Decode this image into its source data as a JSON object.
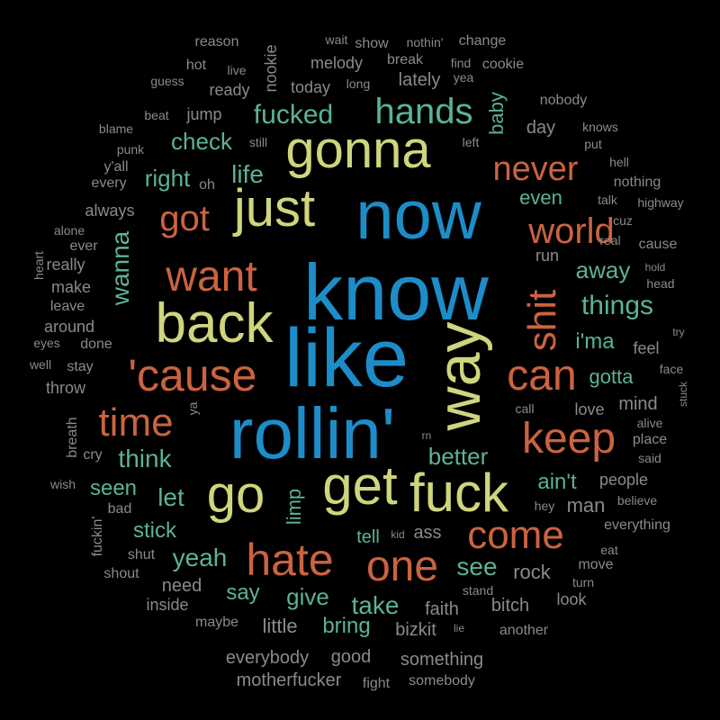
{
  "palette": {
    "blue": "#1d8dc9",
    "yellow": "#cfd57d",
    "orange": "#cb6340",
    "green": "#5bb395",
    "gray": "#8a8a8a"
  },
  "words": [
    {
      "text": "know",
      "color": "blue"
    },
    {
      "text": "like",
      "color": "blue"
    },
    {
      "text": "rollin'",
      "color": "blue"
    },
    {
      "text": "now",
      "color": "blue"
    },
    {
      "text": "gonna",
      "color": "yellow"
    },
    {
      "text": "just",
      "color": "yellow"
    },
    {
      "text": "back",
      "color": "yellow"
    },
    {
      "text": "way",
      "color": "yellow"
    },
    {
      "text": "get",
      "color": "yellow"
    },
    {
      "text": "fuck",
      "color": "yellow"
    },
    {
      "text": "go",
      "color": "yellow"
    },
    {
      "text": "want",
      "color": "orange"
    },
    {
      "text": "'cause",
      "color": "orange"
    },
    {
      "text": "got",
      "color": "orange"
    },
    {
      "text": "can",
      "color": "orange"
    },
    {
      "text": "shit",
      "color": "orange"
    },
    {
      "text": "keep",
      "color": "orange"
    },
    {
      "text": "time",
      "color": "orange"
    },
    {
      "text": "hate",
      "color": "orange"
    },
    {
      "text": "one",
      "color": "orange"
    },
    {
      "text": "come",
      "color": "orange"
    },
    {
      "text": "never",
      "color": "orange"
    },
    {
      "text": "world",
      "color": "orange"
    },
    {
      "text": "hands",
      "color": "green"
    },
    {
      "text": "fucked",
      "color": "green"
    },
    {
      "text": "check",
      "color": "green"
    },
    {
      "text": "life",
      "color": "green"
    },
    {
      "text": "right",
      "color": "green"
    },
    {
      "text": "wanna",
      "color": "green"
    },
    {
      "text": "things",
      "color": "green"
    },
    {
      "text": "away",
      "color": "green"
    },
    {
      "text": "i'ma",
      "color": "green"
    },
    {
      "text": "gotta",
      "color": "green"
    },
    {
      "text": "think",
      "color": "green"
    },
    {
      "text": "let",
      "color": "green"
    },
    {
      "text": "seen",
      "color": "green"
    },
    {
      "text": "better",
      "color": "green"
    },
    {
      "text": "ain't",
      "color": "green"
    },
    {
      "text": "yeah",
      "color": "green"
    },
    {
      "text": "stick",
      "color": "green"
    },
    {
      "text": "see",
      "color": "green"
    },
    {
      "text": "give",
      "color": "green"
    },
    {
      "text": "say",
      "color": "green"
    },
    {
      "text": "take",
      "color": "green"
    },
    {
      "text": "bring",
      "color": "green"
    },
    {
      "text": "tell",
      "color": "green"
    },
    {
      "text": "limp",
      "color": "green"
    },
    {
      "text": "baby",
      "color": "green"
    },
    {
      "text": "even",
      "color": "green"
    },
    {
      "text": "man",
      "color": "gray"
    },
    {
      "text": "ass",
      "color": "gray"
    },
    {
      "text": "rock",
      "color": "gray"
    },
    {
      "text": "bitch",
      "color": "gray"
    },
    {
      "text": "faith",
      "color": "gray"
    },
    {
      "text": "little",
      "color": "gray"
    },
    {
      "text": "bizkit",
      "color": "gray"
    },
    {
      "text": "good",
      "color": "gray"
    },
    {
      "text": "everybody",
      "color": "gray"
    },
    {
      "text": "something",
      "color": "gray"
    },
    {
      "text": "motherfucker",
      "color": "gray"
    },
    {
      "text": "somebody",
      "color": "gray"
    },
    {
      "text": "fight",
      "color": "gray"
    },
    {
      "text": "need",
      "color": "gray"
    },
    {
      "text": "inside",
      "color": "gray"
    },
    {
      "text": "maybe",
      "color": "gray"
    },
    {
      "text": "shout",
      "color": "gray"
    },
    {
      "text": "shut",
      "color": "gray"
    },
    {
      "text": "bad",
      "color": "gray"
    },
    {
      "text": "fuckin'",
      "color": "gray"
    },
    {
      "text": "wish",
      "color": "gray"
    },
    {
      "text": "cry",
      "color": "gray"
    },
    {
      "text": "breath",
      "color": "gray"
    },
    {
      "text": "throw",
      "color": "gray"
    },
    {
      "text": "well",
      "color": "gray"
    },
    {
      "text": "stay",
      "color": "gray"
    },
    {
      "text": "eyes",
      "color": "gray"
    },
    {
      "text": "done",
      "color": "gray"
    },
    {
      "text": "around",
      "color": "gray"
    },
    {
      "text": "leave",
      "color": "gray"
    },
    {
      "text": "make",
      "color": "gray"
    },
    {
      "text": "really",
      "color": "gray"
    },
    {
      "text": "heart",
      "color": "gray"
    },
    {
      "text": "ever",
      "color": "gray"
    },
    {
      "text": "alone",
      "color": "gray"
    },
    {
      "text": "always",
      "color": "gray"
    },
    {
      "text": "every",
      "color": "gray"
    },
    {
      "text": "oh",
      "color": "gray"
    },
    {
      "text": "y'all",
      "color": "gray"
    },
    {
      "text": "punk",
      "color": "gray"
    },
    {
      "text": "blame",
      "color": "gray"
    },
    {
      "text": "beat",
      "color": "gray"
    },
    {
      "text": "still",
      "color": "gray"
    },
    {
      "text": "jump",
      "color": "gray"
    },
    {
      "text": "ready",
      "color": "gray"
    },
    {
      "text": "guess",
      "color": "gray"
    },
    {
      "text": "hot",
      "color": "gray"
    },
    {
      "text": "live",
      "color": "gray"
    },
    {
      "text": "reason",
      "color": "gray"
    },
    {
      "text": "nookie",
      "color": "gray"
    },
    {
      "text": "wait",
      "color": "gray"
    },
    {
      "text": "show",
      "color": "gray"
    },
    {
      "text": "melody",
      "color": "gray"
    },
    {
      "text": "today",
      "color": "gray"
    },
    {
      "text": "long",
      "color": "gray"
    },
    {
      "text": "break",
      "color": "gray"
    },
    {
      "text": "nothin'",
      "color": "gray"
    },
    {
      "text": "change",
      "color": "gray"
    },
    {
      "text": "find",
      "color": "gray"
    },
    {
      "text": "cookie",
      "color": "gray"
    },
    {
      "text": "yea",
      "color": "gray"
    },
    {
      "text": "lately",
      "color": "gray"
    },
    {
      "text": "nobody",
      "color": "gray"
    },
    {
      "text": "day",
      "color": "gray"
    },
    {
      "text": "knows",
      "color": "gray"
    },
    {
      "text": "left",
      "color": "gray"
    },
    {
      "text": "put",
      "color": "gray"
    },
    {
      "text": "hell",
      "color": "gray"
    },
    {
      "text": "nothing",
      "color": "gray"
    },
    {
      "text": "talk",
      "color": "gray"
    },
    {
      "text": "highway",
      "color": "gray"
    },
    {
      "text": "cuz",
      "color": "gray"
    },
    {
      "text": "real",
      "color": "gray"
    },
    {
      "text": "cause",
      "color": "gray"
    },
    {
      "text": "hold",
      "color": "gray"
    },
    {
      "text": "head",
      "color": "gray"
    },
    {
      "text": "run",
      "color": "gray"
    },
    {
      "text": "feel",
      "color": "gray"
    },
    {
      "text": "try",
      "color": "gray"
    },
    {
      "text": "face",
      "color": "gray"
    },
    {
      "text": "mind",
      "color": "gray"
    },
    {
      "text": "stuck",
      "color": "gray"
    },
    {
      "text": "alive",
      "color": "gray"
    },
    {
      "text": "love",
      "color": "gray"
    },
    {
      "text": "call",
      "color": "gray"
    },
    {
      "text": "place",
      "color": "gray"
    },
    {
      "text": "said",
      "color": "gray"
    },
    {
      "text": "people",
      "color": "gray"
    },
    {
      "text": "believe",
      "color": "gray"
    },
    {
      "text": "hey",
      "color": "gray"
    },
    {
      "text": "everything",
      "color": "gray"
    },
    {
      "text": "eat",
      "color": "gray"
    },
    {
      "text": "move",
      "color": "gray"
    },
    {
      "text": "turn",
      "color": "gray"
    },
    {
      "text": "look",
      "color": "gray"
    },
    {
      "text": "stand",
      "color": "gray"
    },
    {
      "text": "another",
      "color": "gray"
    },
    {
      "text": "lie",
      "color": "gray"
    },
    {
      "text": "kid",
      "color": "gray"
    },
    {
      "text": "rn",
      "color": "gray"
    },
    {
      "text": "ya",
      "color": "gray"
    }
  ]
}
